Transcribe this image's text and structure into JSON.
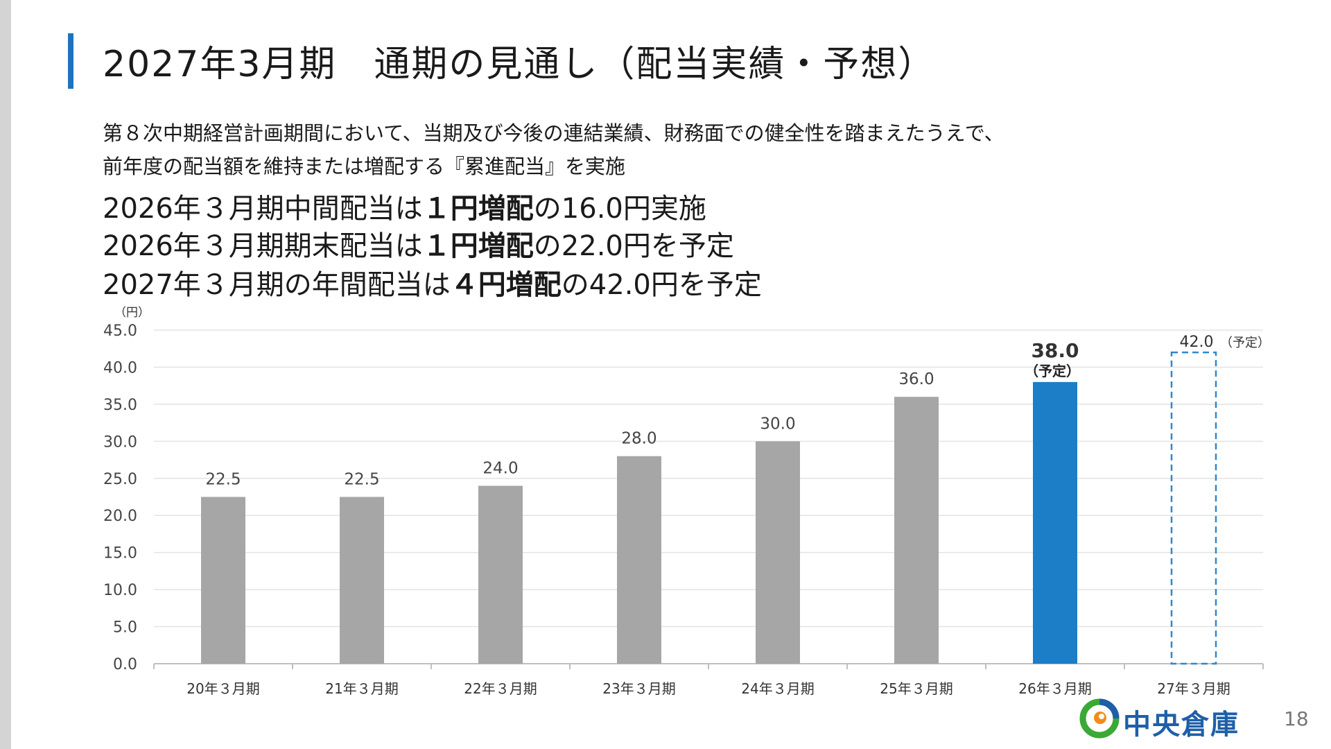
{
  "title": "2027年3月期　通期の見通し（配当実績・予想）",
  "description": {
    "line1": "第８次中期経営計画期間において、当期及び今後の連結業績、財務面での健全性を踏まえたうえで、",
    "line2": "前年度の配当額を維持または増配する『累進配当』を実施"
  },
  "highlights": [
    {
      "prefix": "2026年３月期中間配当は",
      "bold": "１円増配",
      "suffix": "の16.0円実施"
    },
    {
      "prefix": "2026年３月期期末配当は",
      "bold": "１円増配",
      "suffix": "の22.0円を予定"
    },
    {
      "prefix": "2027年３月期の年間配当は",
      "bold": "４円増配",
      "suffix": "の42.0円を予定"
    }
  ],
  "chart_data": {
    "type": "bar",
    "ylabel": "（円）",
    "ylim": [
      0,
      45
    ],
    "yticks": [
      "0.0",
      "5.0",
      "10.0",
      "15.0",
      "20.0",
      "25.0",
      "30.0",
      "35.0",
      "40.0",
      "45.0"
    ],
    "grid": true,
    "categories": [
      "20年３月期",
      "21年３月期",
      "22年３月期",
      "23年３月期",
      "24年３月期",
      "25年３月期",
      "26年３月期",
      "27年３月期"
    ],
    "values": [
      22.5,
      22.5,
      24.0,
      28.0,
      30.0,
      36.0,
      38.0,
      42.0
    ],
    "value_labels": [
      "22.5",
      "22.5",
      "24.0",
      "28.0",
      "30.0",
      "36.0",
      "38.0",
      "42.0"
    ],
    "label_notes": [
      "",
      "",
      "",
      "",
      "",
      "",
      "（予定）",
      "（予定）"
    ],
    "bar_styles": [
      "actual",
      "actual",
      "actual",
      "actual",
      "actual",
      "actual",
      "planned",
      "forecast"
    ],
    "colors": {
      "actual": "#a6a6a6",
      "planned": "#1b7ec7",
      "forecast": "#2f86cf",
      "grid": "#e3e3e3",
      "axis": "#bfbfbf"
    }
  },
  "logo": {
    "text": "中央倉庫",
    "colors": [
      "#1e5fa8",
      "#f28c1a",
      "#3aa935"
    ]
  },
  "page_number": "18"
}
